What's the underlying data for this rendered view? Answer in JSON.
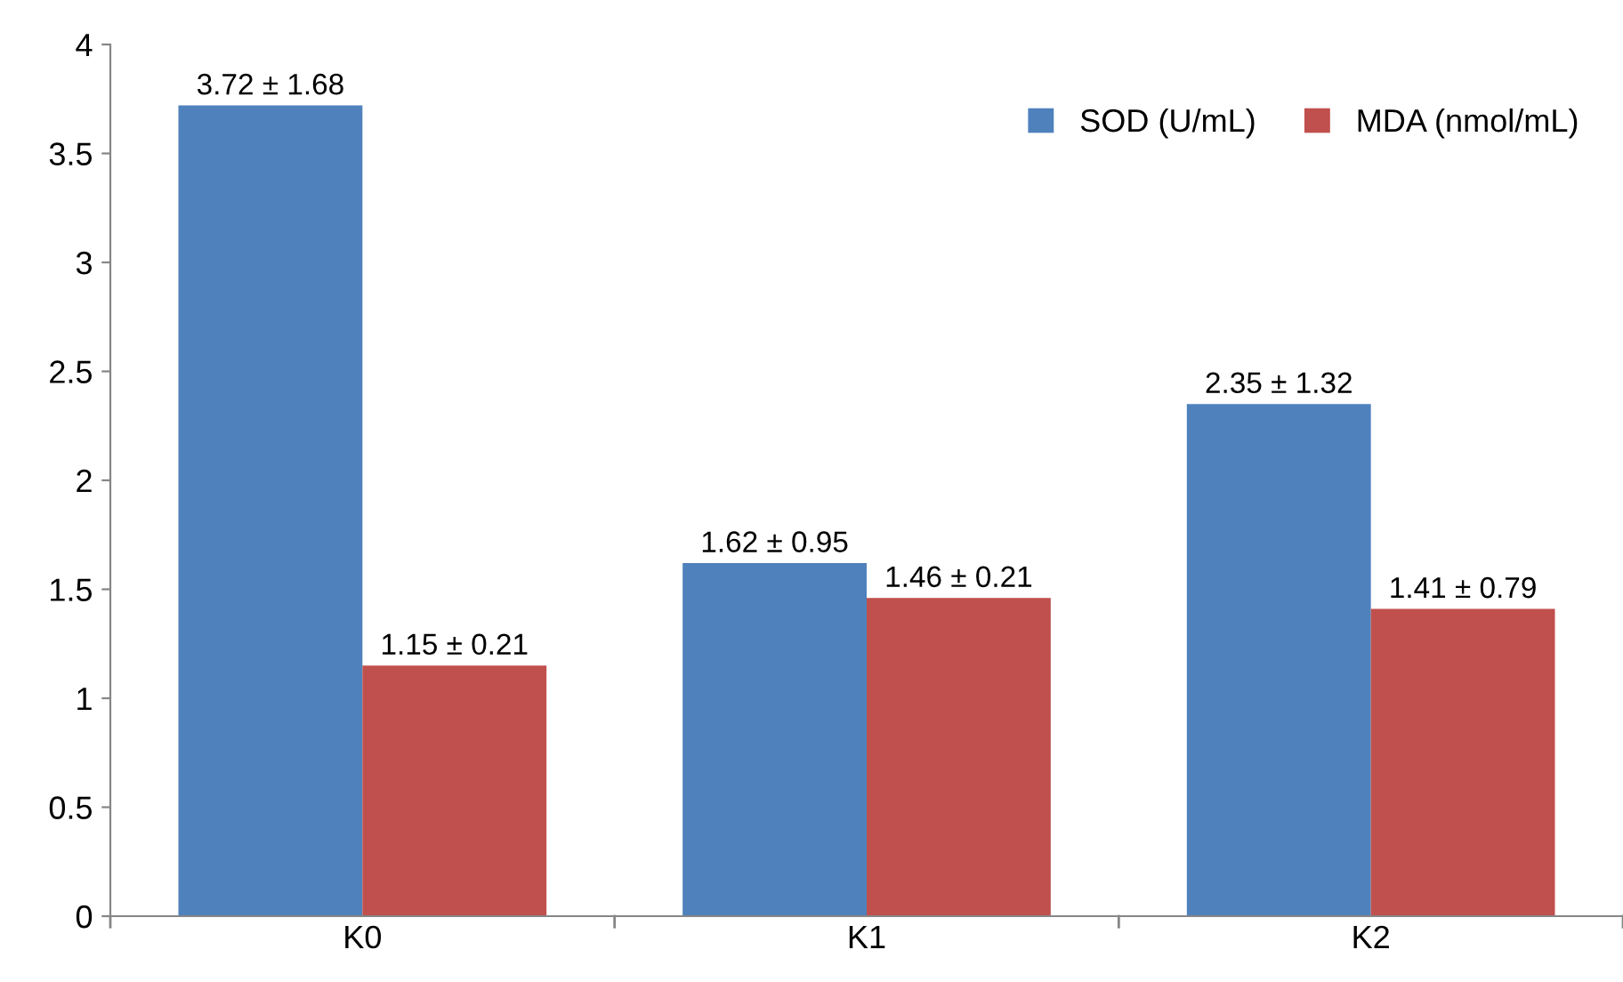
{
  "chart_data": {
    "type": "bar",
    "categories": [
      "K0",
      "K1",
      "K2"
    ],
    "series": [
      {
        "name": "SOD (U/mL)",
        "color": "#4f81bd",
        "values": [
          3.72,
          1.62,
          2.35
        ],
        "value_labels": [
          "3.72 ± 1.68",
          "1.62 ± 0.95",
          "2.35 ± 1.32"
        ]
      },
      {
        "name": "MDA (nmol/mL)",
        "color": "#c0504d",
        "values": [
          1.15,
          1.46,
          1.41
        ],
        "value_labels": [
          "1.15 ± 0.21",
          "1.46 ± 0.21",
          "1.41 ± 0.79"
        ]
      }
    ],
    "ylim": [
      0,
      4
    ],
    "yticks": [
      0,
      {
        "value": 0.5,
        "label": "0.5"
      },
      1,
      {
        "value": 1.5,
        "label": "1.5"
      },
      2,
      {
        "value": 2.5,
        "label": "2.5"
      },
      3,
      {
        "value": 3.5,
        "label": "3.5"
      },
      4
    ],
    "grid": false,
    "legend": "top right"
  }
}
